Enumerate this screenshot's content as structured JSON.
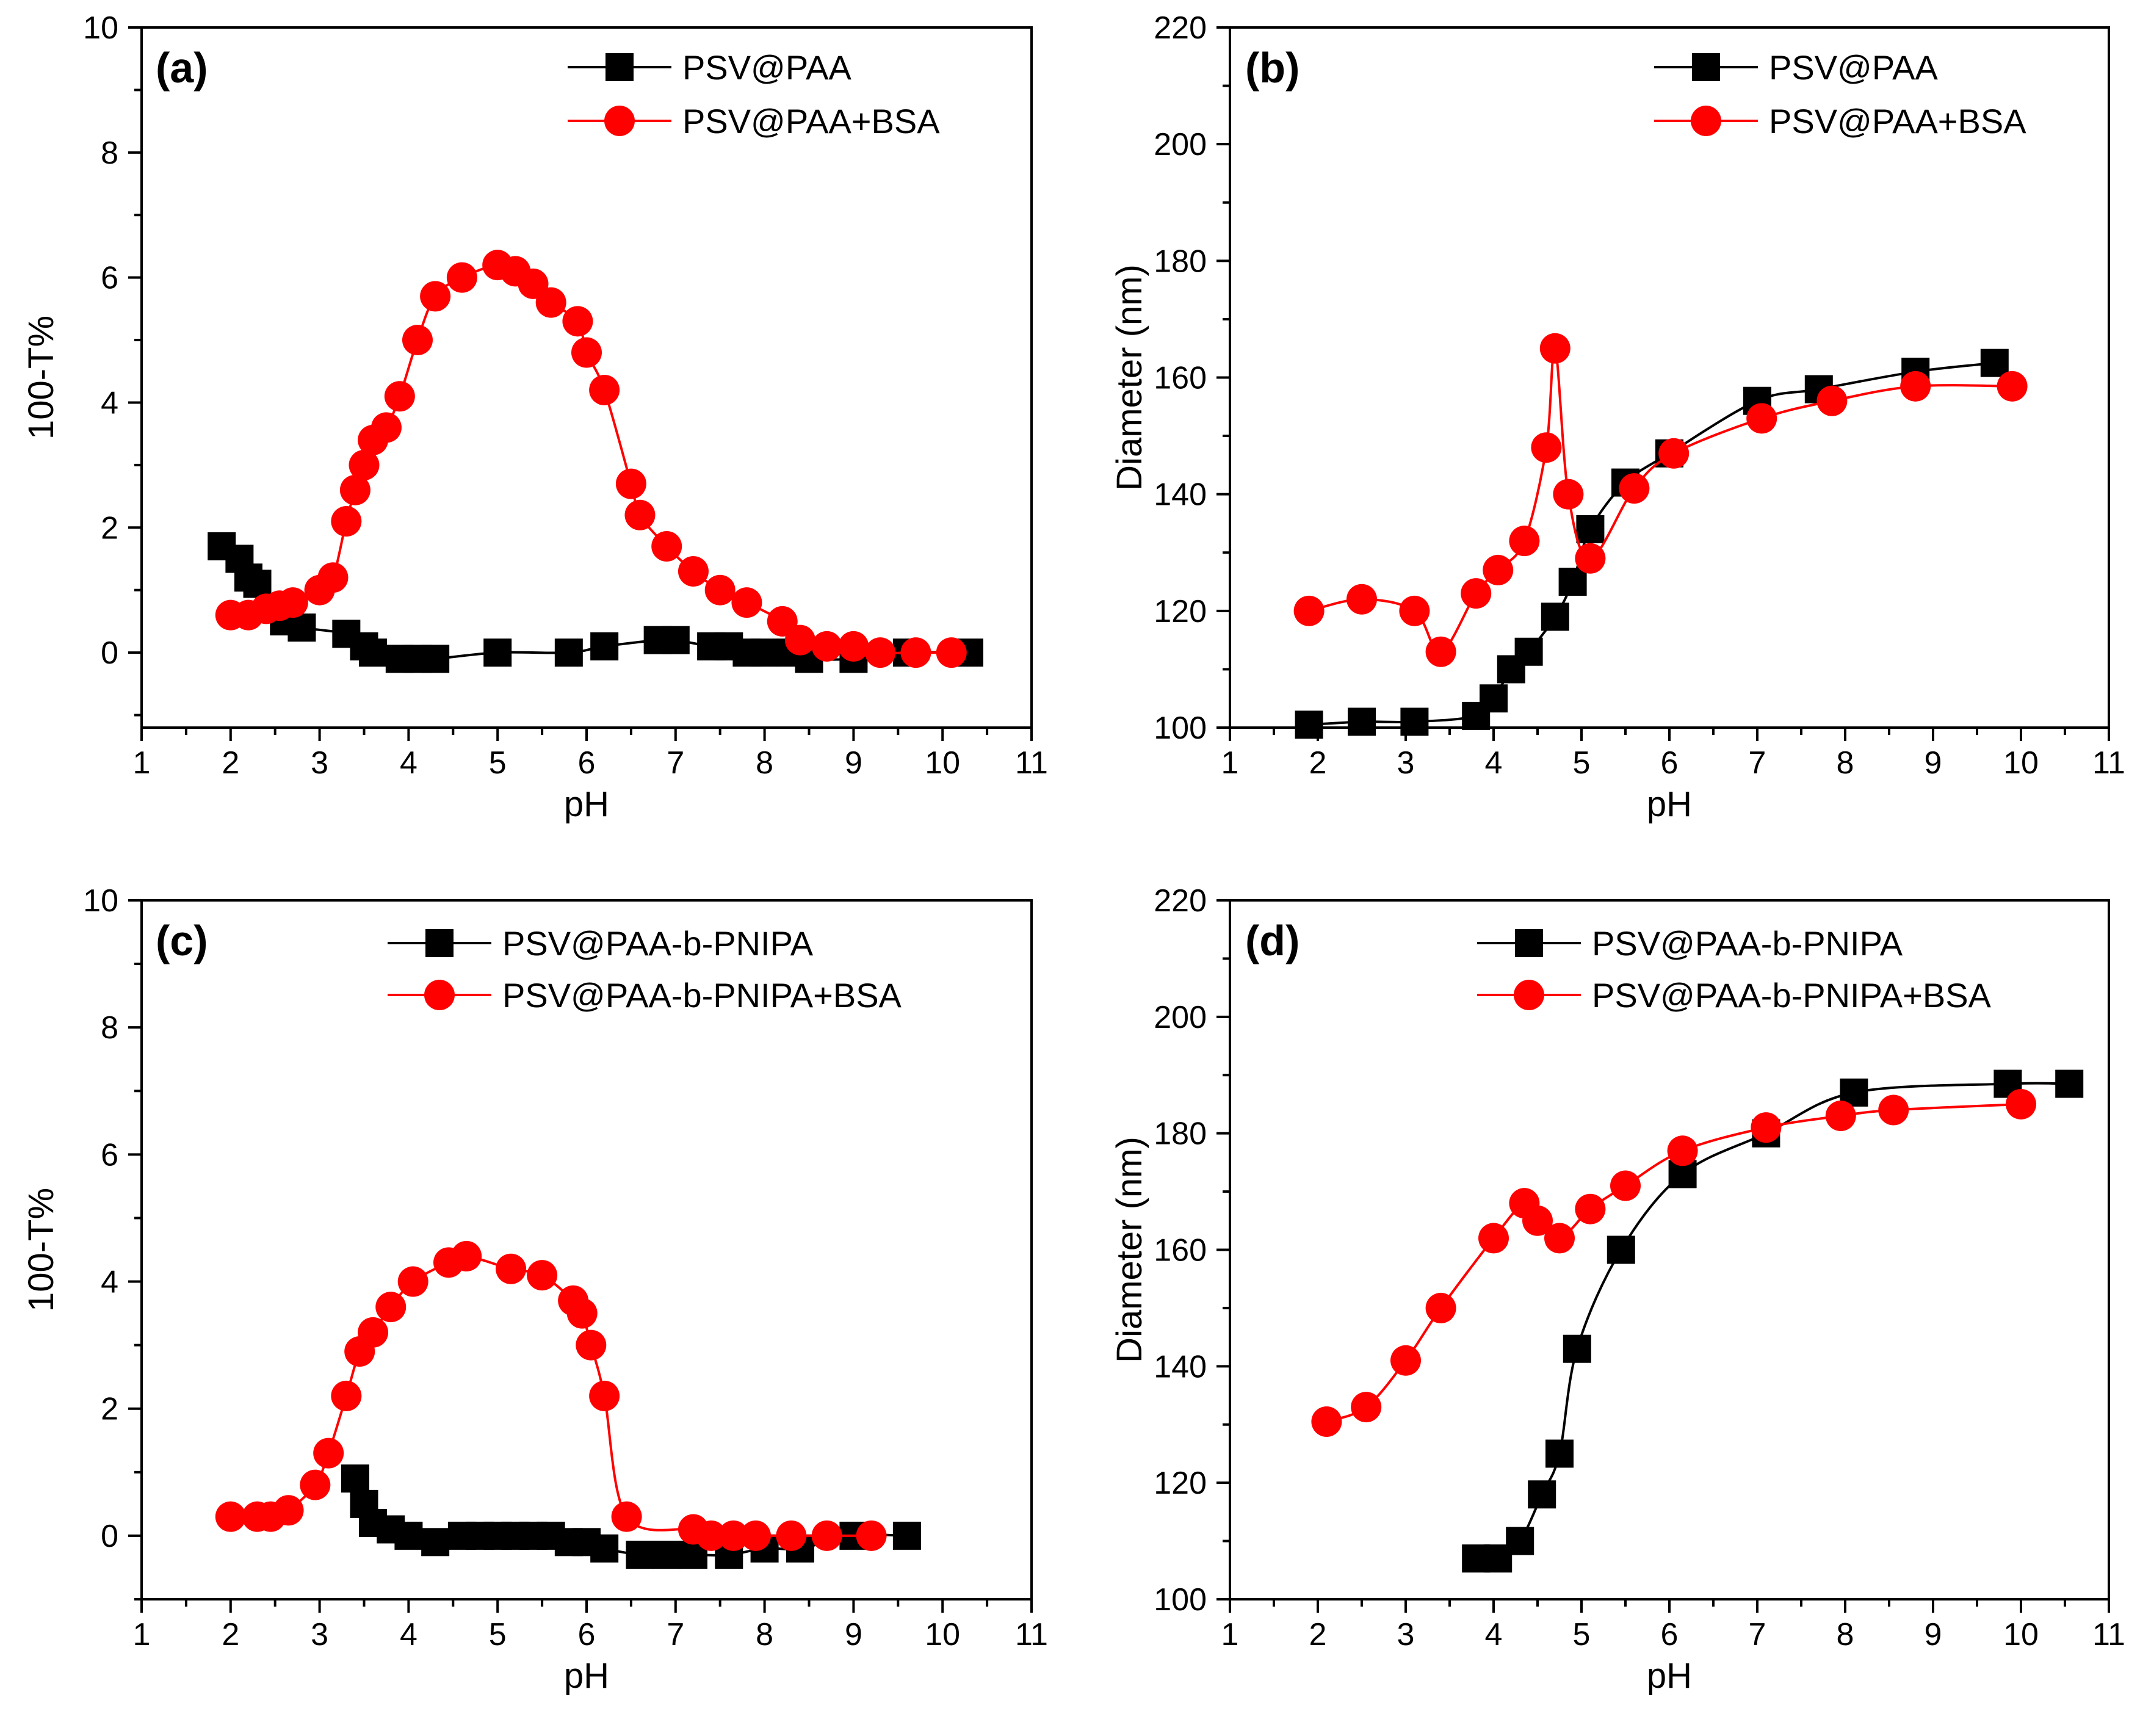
{
  "chart_data": [
    {
      "id": "a",
      "type": "line",
      "panel_label": "(a)",
      "xlabel": "pH",
      "ylabel": "100-T%",
      "xlim": [
        1,
        11
      ],
      "ylim": [
        -1.2,
        10
      ],
      "xticks": [
        1,
        2,
        3,
        4,
        5,
        6,
        7,
        8,
        9,
        10,
        11
      ],
      "yticks": [
        0,
        2,
        4,
        6,
        8,
        10
      ],
      "legend_position": "top-right",
      "series": [
        {
          "name": "PSV@PAA",
          "color": "#000000",
          "marker": "square",
          "x": [
            1.9,
            2.1,
            2.2,
            2.3,
            2.6,
            2.8,
            3.3,
            3.5,
            3.6,
            3.9,
            4.1,
            4.3,
            5.0,
            5.8,
            6.2,
            6.8,
            7.0,
            7.4,
            7.6,
            7.8,
            8.0,
            8.3,
            8.5,
            9.0,
            9.6,
            10.3
          ],
          "y": [
            1.7,
            1.5,
            1.2,
            1.1,
            0.5,
            0.4,
            0.3,
            0.1,
            0.0,
            -0.1,
            -0.1,
            -0.1,
            0.0,
            0.0,
            0.1,
            0.2,
            0.2,
            0.1,
            0.1,
            0.0,
            0.0,
            0.0,
            -0.1,
            -0.1,
            0.0,
            0.0
          ]
        },
        {
          "name": "PSV@PAA+BSA",
          "color": "#ff0000",
          "marker": "circle",
          "x": [
            2.0,
            2.2,
            2.4,
            2.55,
            2.7,
            3.0,
            3.15,
            3.3,
            3.4,
            3.5,
            3.6,
            3.75,
            3.9,
            4.1,
            4.3,
            4.6,
            5.0,
            5.2,
            5.4,
            5.6,
            5.9,
            6.0,
            6.2,
            6.5,
            6.6,
            6.9,
            7.2,
            7.5,
            7.8,
            8.2,
            8.4,
            8.7,
            9.0,
            9.3,
            9.7,
            10.1
          ],
          "y": [
            0.6,
            0.6,
            0.7,
            0.75,
            0.8,
            1.0,
            1.2,
            2.1,
            2.6,
            3.0,
            3.4,
            3.6,
            4.1,
            5.0,
            5.7,
            6.0,
            6.2,
            6.1,
            5.9,
            5.6,
            5.3,
            4.8,
            4.2,
            2.7,
            2.2,
            1.7,
            1.3,
            1.0,
            0.8,
            0.5,
            0.2,
            0.1,
            0.1,
            0.0,
            0.0,
            0.0
          ]
        }
      ]
    },
    {
      "id": "b",
      "type": "line",
      "panel_label": "(b)",
      "xlabel": "pH",
      "ylabel": "Diameter (nm)",
      "xlim": [
        1,
        11
      ],
      "ylim": [
        100,
        220
      ],
      "xticks": [
        1,
        2,
        3,
        4,
        5,
        6,
        7,
        8,
        9,
        10,
        11
      ],
      "yticks": [
        100,
        120,
        140,
        160,
        180,
        200,
        220
      ],
      "legend_position": "top-right",
      "series": [
        {
          "name": "PSV@PAA",
          "color": "#000000",
          "marker": "square",
          "x": [
            1.9,
            2.5,
            3.1,
            3.8,
            4.0,
            4.2,
            4.4,
            4.7,
            4.9,
            5.1,
            5.5,
            6.0,
            7.0,
            7.7,
            8.8,
            9.7
          ],
          "y": [
            100.5,
            101,
            101,
            102,
            105,
            110,
            113,
            119,
            125,
            134,
            142,
            147,
            156,
            158,
            161,
            162.5
          ]
        },
        {
          "name": "PSV@PAA+BSA",
          "color": "#ff0000",
          "marker": "circle",
          "x": [
            1.9,
            2.5,
            3.1,
            3.4,
            3.8,
            4.05,
            4.35,
            4.6,
            4.7,
            4.85,
            5.1,
            5.6,
            6.05,
            7.05,
            7.85,
            8.8,
            9.9
          ],
          "y": [
            120,
            122,
            120,
            113,
            123,
            127,
            132,
            148,
            165,
            140,
            129,
            141,
            147,
            153,
            156,
            158.5,
            158.5
          ]
        }
      ]
    },
    {
      "id": "c",
      "type": "line",
      "panel_label": "(c)",
      "xlabel": "pH",
      "ylabel": "100-T%",
      "xlim": [
        1,
        11
      ],
      "ylim": [
        -1.0,
        10
      ],
      "xticks": [
        1,
        2,
        3,
        4,
        5,
        6,
        7,
        8,
        9,
        10,
        11
      ],
      "yticks": [
        0,
        2,
        4,
        6,
        8,
        10
      ],
      "legend_position": "top-right",
      "series": [
        {
          "name": "PSV@PAA-b-PNIPA",
          "color": "#000000",
          "marker": "square",
          "x": [
            3.4,
            3.5,
            3.6,
            3.8,
            4.0,
            4.3,
            4.6,
            4.8,
            5.0,
            5.2,
            5.4,
            5.6,
            5.8,
            6.0,
            6.2,
            6.6,
            6.9,
            7.2,
            7.6,
            8.0,
            8.4,
            9.0,
            9.6
          ],
          "y": [
            0.9,
            0.5,
            0.2,
            0.1,
            0.0,
            -0.1,
            0.0,
            0.0,
            0.0,
            0.0,
            0.0,
            0.0,
            -0.1,
            -0.1,
            -0.2,
            -0.3,
            -0.3,
            -0.3,
            -0.3,
            -0.2,
            -0.2,
            0.0,
            0.0
          ]
        },
        {
          "name": "PSV@PAA-b-PNIPA+BSA",
          "color": "#ff0000",
          "marker": "circle",
          "x": [
            2.0,
            2.3,
            2.45,
            2.65,
            2.95,
            3.1,
            3.3,
            3.45,
            3.6,
            3.8,
            4.05,
            4.45,
            4.65,
            5.15,
            5.5,
            5.85,
            5.95,
            6.05,
            6.2,
            6.45,
            7.2,
            7.4,
            7.65,
            7.9,
            8.3,
            8.7,
            9.2
          ],
          "y": [
            0.3,
            0.3,
            0.3,
            0.4,
            0.8,
            1.3,
            2.2,
            2.9,
            3.2,
            3.6,
            4.0,
            4.3,
            4.4,
            4.2,
            4.1,
            3.7,
            3.5,
            3.0,
            2.2,
            0.3,
            0.1,
            0.0,
            0.0,
            0.0,
            0.0,
            0.0,
            0.0
          ]
        }
      ]
    },
    {
      "id": "d",
      "type": "line",
      "panel_label": "(d)",
      "xlabel": "pH",
      "ylabel": "Diameter (nm)",
      "xlim": [
        1,
        11
      ],
      "ylim": [
        100,
        220
      ],
      "xticks": [
        1,
        2,
        3,
        4,
        5,
        6,
        7,
        8,
        9,
        10,
        11
      ],
      "yticks": [
        100,
        120,
        140,
        160,
        180,
        200,
        220
      ],
      "legend_position": "top-right",
      "series": [
        {
          "name": "PSV@PAA-b-PNIPA",
          "color": "#000000",
          "marker": "square",
          "x": [
            3.8,
            4.05,
            4.3,
            4.55,
            4.75,
            4.95,
            5.45,
            6.15,
            7.1,
            8.1,
            9.85,
            10.55
          ],
          "y": [
            107,
            107,
            110,
            118,
            125,
            143,
            160,
            173,
            180,
            187,
            188.5,
            188.5
          ]
        },
        {
          "name": "PSV@PAA-b-PNIPA+BSA",
          "color": "#ff0000",
          "marker": "circle",
          "x": [
            2.1,
            2.55,
            3.0,
            3.4,
            4.0,
            4.35,
            4.5,
            4.75,
            5.1,
            5.5,
            6.15,
            7.1,
            7.95,
            8.55,
            10.0
          ],
          "y": [
            130.5,
            133,
            141,
            150,
            162,
            168,
            165,
            162,
            167,
            171,
            177,
            181,
            183,
            184,
            185
          ]
        }
      ]
    }
  ]
}
